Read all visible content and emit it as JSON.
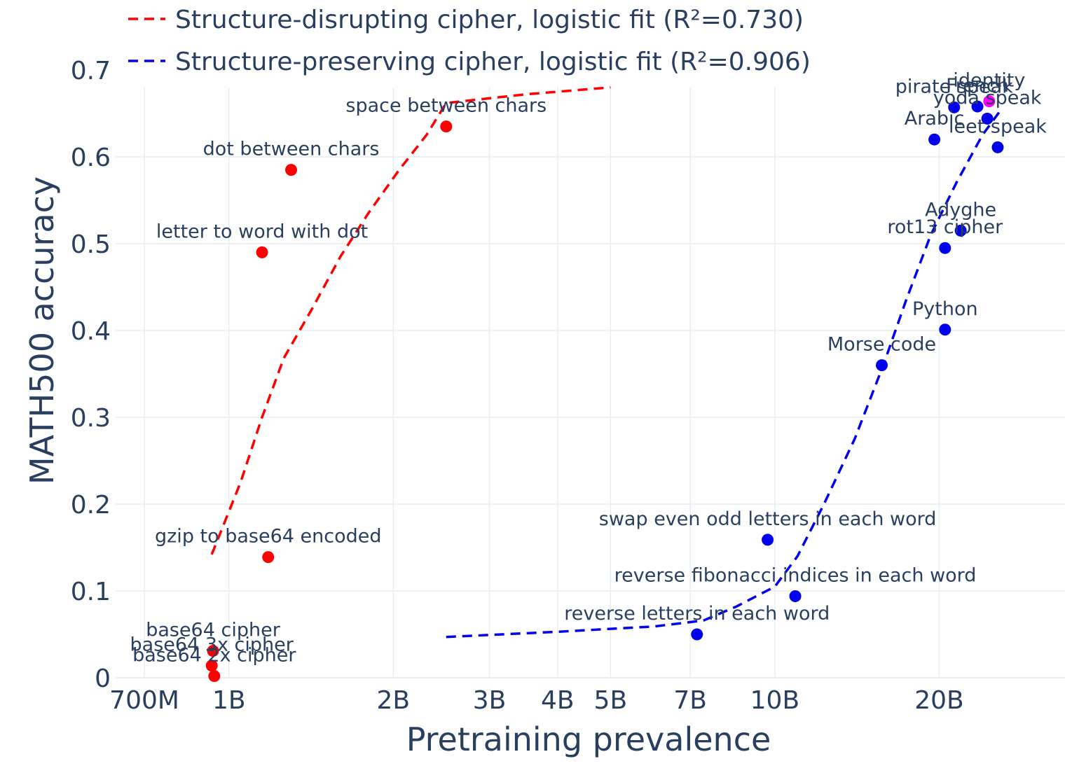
{
  "chart_data": {
    "type": "scatter",
    "title": "",
    "xlabel": "Pretraining prevalence",
    "ylabel": "MATH500 accuracy",
    "xscale": "log",
    "xlim": [
      620000000,
      34000000000
    ],
    "ylim": [
      0,
      0.68
    ],
    "grid": true,
    "xticks": [
      {
        "value": 700000000,
        "label": "700M"
      },
      {
        "value": 1000000000,
        "label": "1B"
      },
      {
        "value": 2000000000,
        "label": "2B"
      },
      {
        "value": 3000000000,
        "label": "3B"
      },
      {
        "value": 4000000000,
        "label": "4B"
      },
      {
        "value": 5000000000,
        "label": "5B"
      },
      {
        "value": 7000000000,
        "label": "7B"
      },
      {
        "value": 10000000000,
        "label": "10B"
      },
      {
        "value": 20000000000,
        "label": "20B"
      }
    ],
    "yticks": [
      {
        "value": 0,
        "label": "0"
      },
      {
        "value": 0.1,
        "label": "0.1"
      },
      {
        "value": 0.2,
        "label": "0.2"
      },
      {
        "value": 0.3,
        "label": "0.3"
      },
      {
        "value": 0.4,
        "label": "0.4"
      },
      {
        "value": 0.5,
        "label": "0.5"
      },
      {
        "value": 0.6,
        "label": "0.6"
      },
      {
        "value": 0.7,
        "label": "0.7"
      }
    ],
    "colors": {
      "disrupting": "#ff0000",
      "preserving": "#0000ee",
      "identity": "#ff00ff",
      "text": "#2a3f5f",
      "grid": "#e8ecf4"
    },
    "legend": {
      "position": "top-left",
      "entries": [
        {
          "label": "Structure-disrupting cipher, logistic fit (R²=0.730)",
          "color": "#ff0000",
          "style": "dashed"
        },
        {
          "label": "Structure-preserving cipher, logistic fit (R²=0.906)",
          "color": "#0000ee",
          "style": "dashed"
        }
      ]
    },
    "series": [
      {
        "name": "Structure-disrupting cipher",
        "color": "#ff0000",
        "points": [
          {
            "label": "space between chars",
            "x": 2500000000,
            "y": 0.635
          },
          {
            "label": "dot between chars",
            "x": 1300000000,
            "y": 0.585
          },
          {
            "label": "letter to word with dot",
            "x": 1150000000,
            "y": 0.49
          },
          {
            "label": "gzip to base64 encoded",
            "x": 1180000000,
            "y": 0.139
          },
          {
            "label": "base64 cipher",
            "x": 935000000,
            "y": 0.031
          },
          {
            "label": "base64 3x cipher",
            "x": 930000000,
            "y": 0.014
          },
          {
            "label": "base64 2x cipher",
            "x": 940000000,
            "y": 0.002
          }
        ]
      },
      {
        "name": "Structure-preserving cipher",
        "color": "#0000ee",
        "points": [
          {
            "label": "identity",
            "x": 24700000000,
            "y": 0.664,
            "color": "#ff00ff"
          },
          {
            "label": "pirate speak",
            "x": 21300000000,
            "y": 0.657
          },
          {
            "label": "French",
            "x": 23500000000,
            "y": 0.658
          },
          {
            "label": "yoda speak",
            "x": 24500000000,
            "y": 0.644
          },
          {
            "label": "Arabic",
            "x": 19600000000,
            "y": 0.62
          },
          {
            "label": "leet speak",
            "x": 25600000000,
            "y": 0.611
          },
          {
            "label": "Adyghe",
            "x": 21900000000,
            "y": 0.515
          },
          {
            "label": "rot13 cipher",
            "x": 20500000000,
            "y": 0.495
          },
          {
            "label": "Python",
            "x": 20500000000,
            "y": 0.401
          },
          {
            "label": "Morse code",
            "x": 15700000000,
            "y": 0.36
          },
          {
            "label": "swap even odd letters in each word",
            "x": 9700000000,
            "y": 0.159
          },
          {
            "label": "reverse fibonacci indices in each word",
            "x": 10900000000,
            "y": 0.094
          },
          {
            "label": "reverse letters in each word",
            "x": 7200000000,
            "y": 0.05
          }
        ]
      }
    ],
    "fit_lines": [
      {
        "name": "Structure-disrupting logistic fit",
        "color": "#ff0000",
        "points": [
          {
            "x": 930000000,
            "y": 0.142
          },
          {
            "x": 1050000000,
            "y": 0.225
          },
          {
            "x": 1150000000,
            "y": 0.3
          },
          {
            "x": 1260000000,
            "y": 0.368
          },
          {
            "x": 1420000000,
            "y": 0.425
          },
          {
            "x": 1600000000,
            "y": 0.485
          },
          {
            "x": 1800000000,
            "y": 0.535
          },
          {
            "x": 2050000000,
            "y": 0.585
          },
          {
            "x": 2300000000,
            "y": 0.625
          },
          {
            "x": 2500000000,
            "y": 0.662
          },
          {
            "x": 3500000000,
            "y": 0.672
          },
          {
            "x": 5000000000,
            "y": 0.68
          }
        ]
      },
      {
        "name": "Structure-preserving logistic fit",
        "color": "#0000ee",
        "points": [
          {
            "x": 2500000000,
            "y": 0.047
          },
          {
            "x": 4000000000,
            "y": 0.053
          },
          {
            "x": 6000000000,
            "y": 0.059
          },
          {
            "x": 7400000000,
            "y": 0.066
          },
          {
            "x": 8500000000,
            "y": 0.082
          },
          {
            "x": 10000000000,
            "y": 0.105
          },
          {
            "x": 11000000000,
            "y": 0.14
          },
          {
            "x": 12300000000,
            "y": 0.2
          },
          {
            "x": 14000000000,
            "y": 0.275
          },
          {
            "x": 15800000000,
            "y": 0.36
          },
          {
            "x": 17400000000,
            "y": 0.435
          },
          {
            "x": 19300000000,
            "y": 0.51
          },
          {
            "x": 21500000000,
            "y": 0.57
          },
          {
            "x": 24000000000,
            "y": 0.625
          },
          {
            "x": 25800000000,
            "y": 0.652
          }
        ]
      }
    ]
  }
}
